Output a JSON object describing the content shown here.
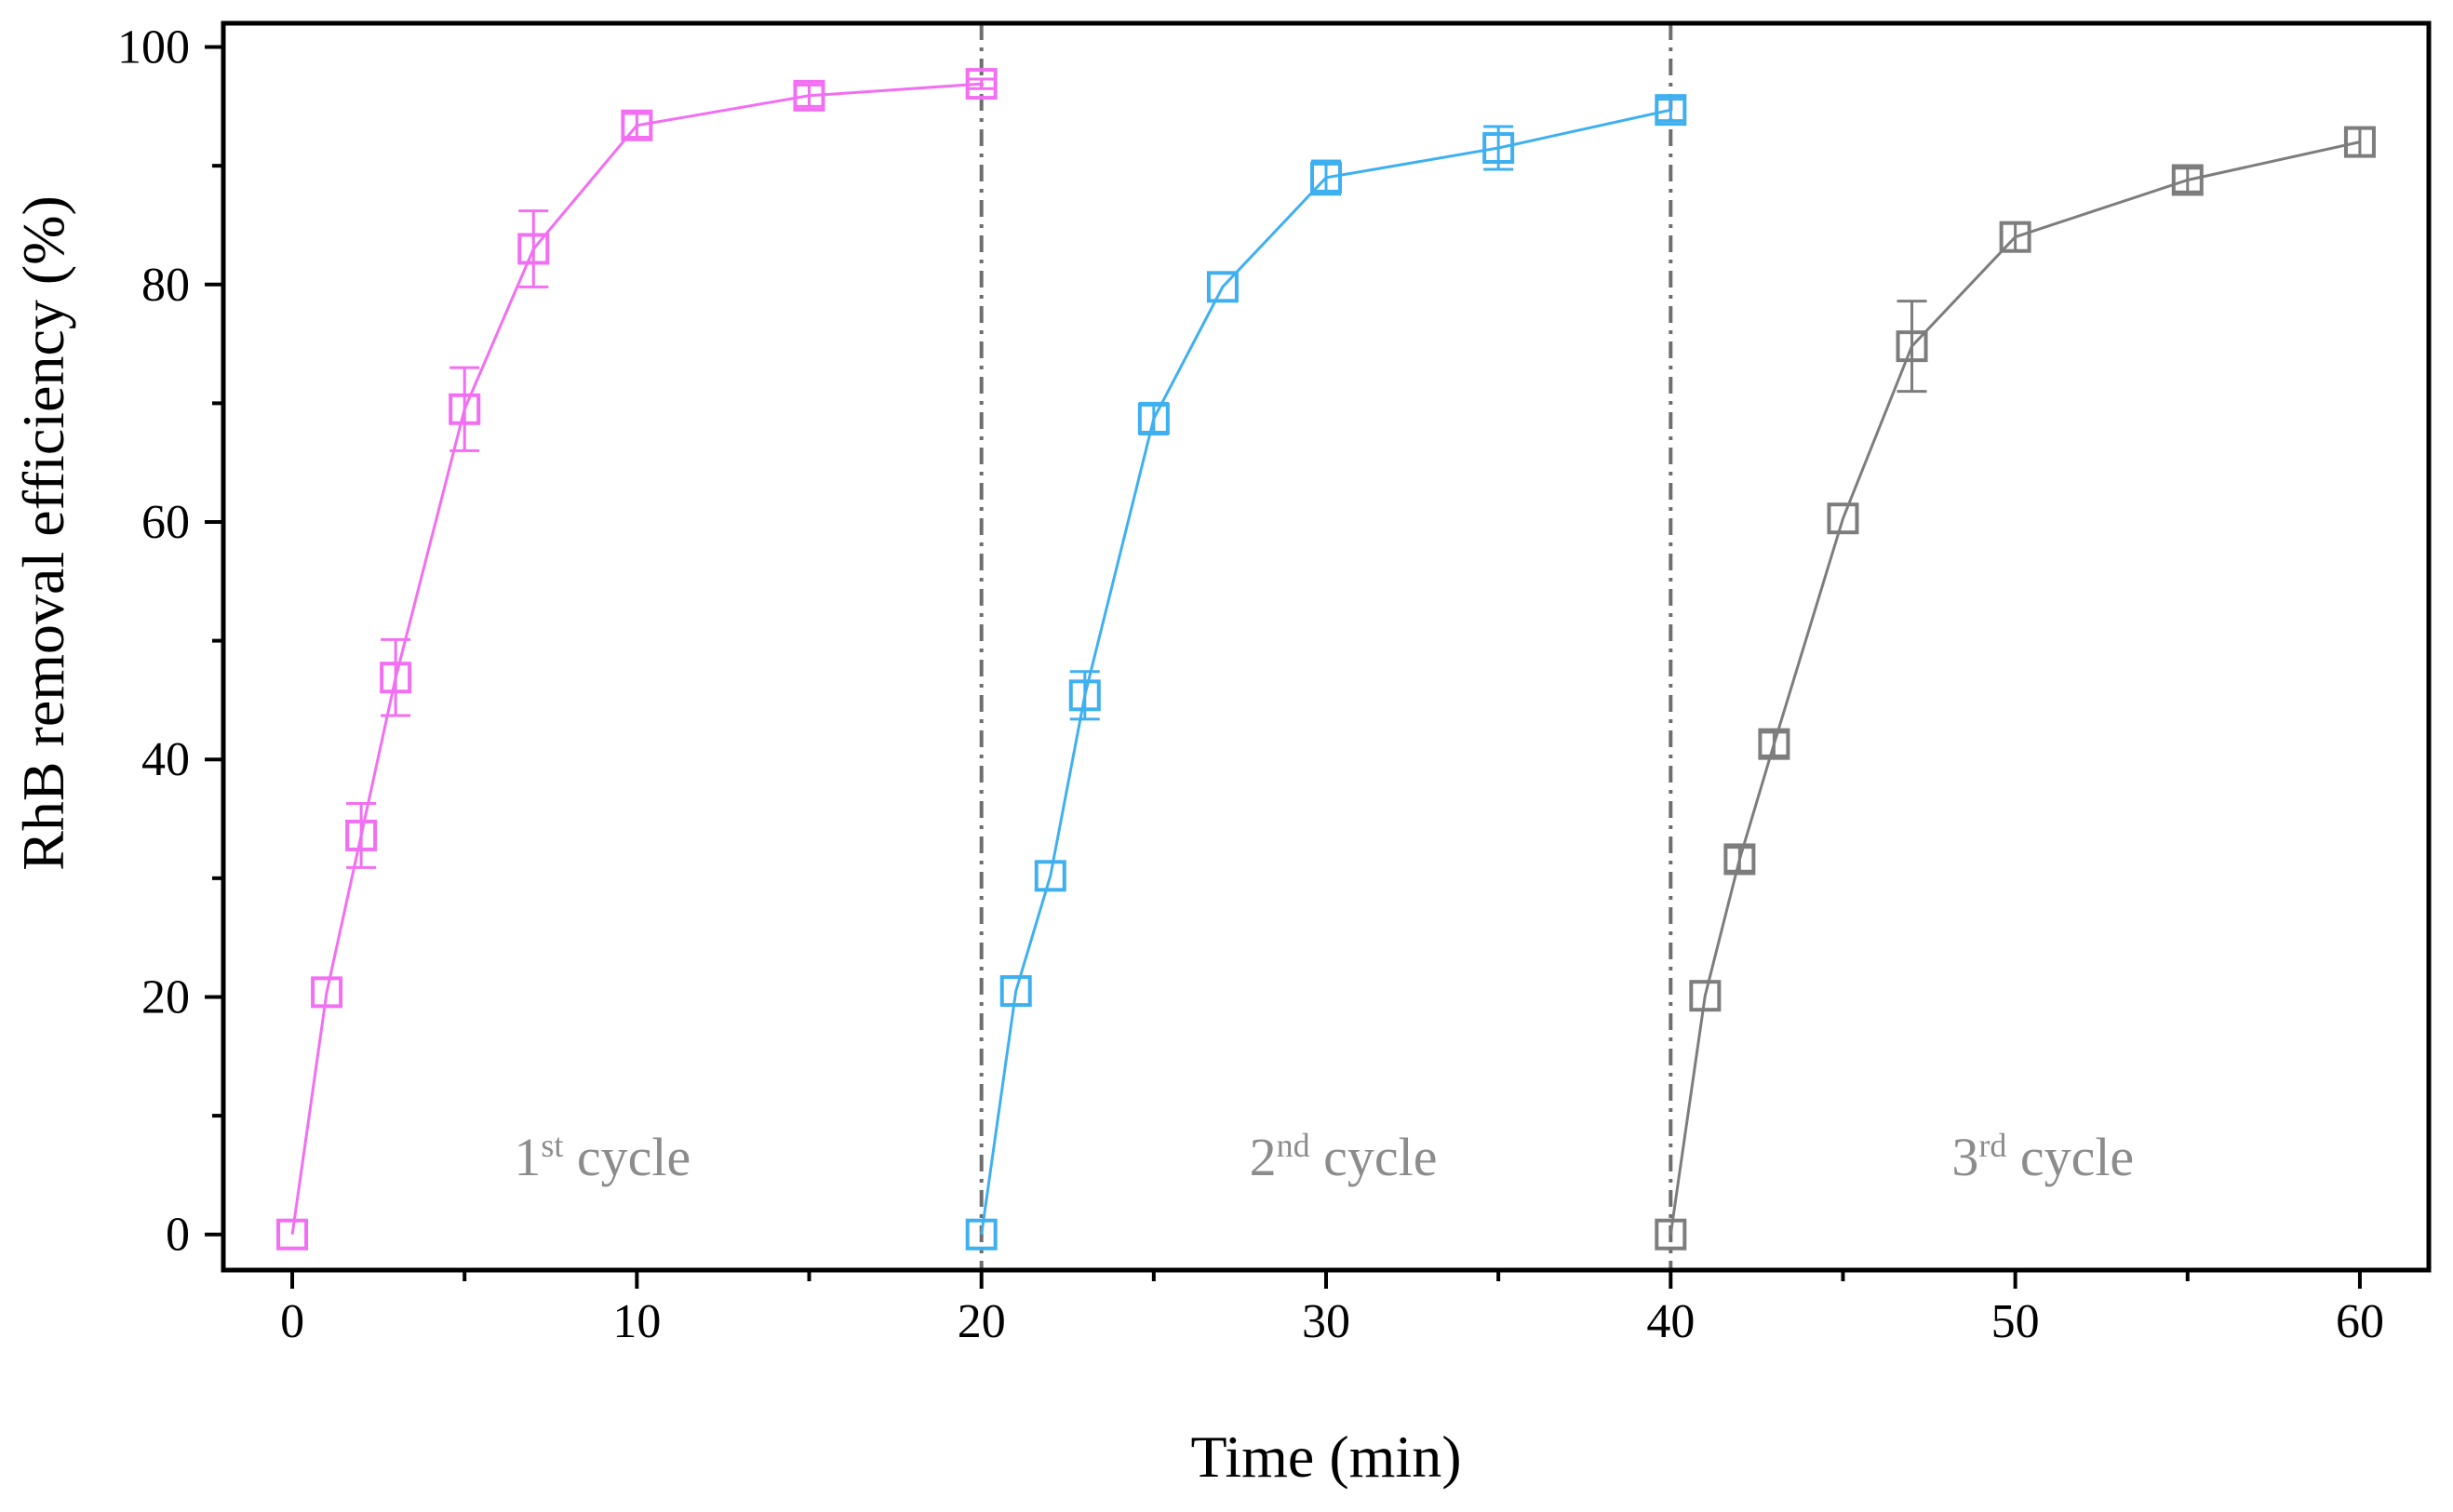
{
  "chart_data": {
    "type": "line",
    "title": "",
    "xlabel": "Time (min)",
    "ylabel": "RhB removal efficiency (%)",
    "xlim": [
      -2,
      62
    ],
    "ylim": [
      -3,
      102
    ],
    "xticks": [
      0,
      10,
      20,
      30,
      40,
      50,
      60
    ],
    "xtick_labels": [
      "0",
      "10",
      "20",
      "30",
      "40",
      "50",
      "60"
    ],
    "xminor": [
      5,
      15,
      25,
      35,
      45,
      55
    ],
    "yticks": [
      0,
      20,
      40,
      60,
      80,
      100
    ],
    "ytick_labels": [
      "0",
      "20",
      "40",
      "60",
      "80",
      "100"
    ],
    "yminor": [
      10,
      30,
      50,
      70,
      90
    ],
    "grid": false,
    "divider_x": [
      20,
      40
    ],
    "divider_color": "#6e6e6e",
    "series": [
      {
        "name": "1st cycle",
        "color": "#f26ef2",
        "x": [
          0,
          1,
          2,
          3,
          5,
          7,
          10,
          15,
          20
        ],
        "values": [
          0,
          20.4,
          33.6,
          46.9,
          69.5,
          83.0,
          93.4,
          95.9,
          96.9
        ],
        "errors": [
          0,
          0,
          2.7,
          3.2,
          3.5,
          3.2,
          1.0,
          0.9,
          0.4
        ]
      },
      {
        "name": "2nd cycle",
        "color": "#3eb0f0",
        "x": [
          20,
          21,
          22,
          23,
          25,
          27,
          30,
          35,
          40
        ],
        "values": [
          0,
          20.5,
          30.2,
          45.4,
          68.7,
          79.8,
          89.0,
          91.5,
          94.7
        ],
        "errors": [
          0,
          0,
          0,
          2.0,
          1.3,
          0,
          1.4,
          1.8,
          0.9
        ]
      },
      {
        "name": "3rd cycle",
        "color": "#7d7d7d",
        "x": [
          40,
          41,
          42,
          43,
          45,
          47,
          50,
          55,
          60
        ],
        "values": [
          0,
          20.1,
          31.6,
          41.3,
          60.3,
          74.8,
          84.0,
          88.8,
          92.0
        ],
        "errors": [
          0,
          0,
          1.0,
          1.0,
          0,
          3.8,
          1.2,
          1.0,
          1.2
        ]
      }
    ],
    "annotations": [
      {
        "num": "1",
        "sup": "st",
        "text": " cycle",
        "x": 9,
        "y": 5
      },
      {
        "num": "2",
        "sup": "nd",
        "text": " cycle",
        "x": 30.5,
        "y": 5
      },
      {
        "num": "3",
        "sup": "rd",
        "text": " cycle",
        "x": 50.8,
        "y": 5
      }
    ],
    "annotation_color": "#8c8c8c"
  }
}
